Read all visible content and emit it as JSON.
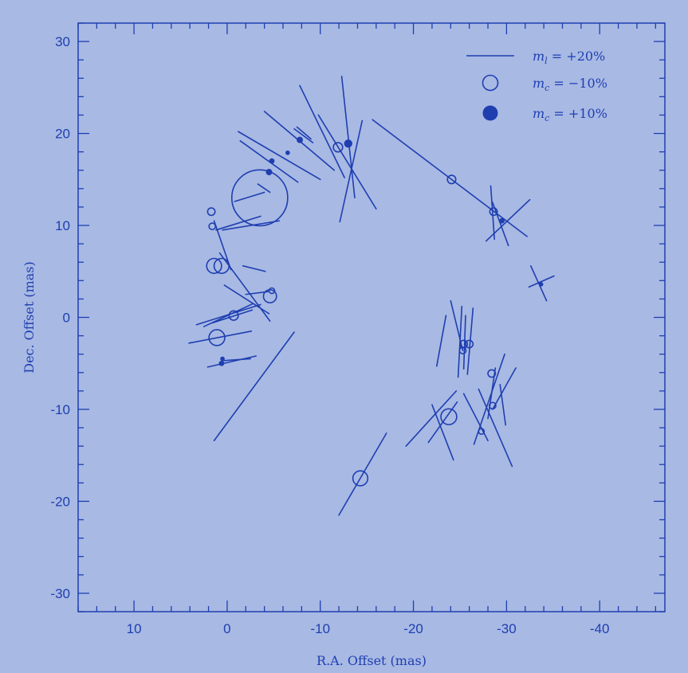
{
  "chart_data": {
    "type": "scatter",
    "title": "",
    "xlabel": "R.A. Offset (mas)",
    "ylabel": "Dec. Offset (mas)",
    "xlim": [
      16,
      -47
    ],
    "ylim": [
      -32,
      32
    ],
    "xticks": [
      10,
      0,
      -10,
      -20,
      -30,
      -40
    ],
    "xtick_labels": [
      "10",
      "0",
      "-10",
      "-20",
      "-30",
      "-40"
    ],
    "yticks": [
      30,
      20,
      10,
      0,
      -10,
      -20,
      -30
    ],
    "ytick_labels": [
      "30",
      "20",
      "10",
      "0",
      "-10",
      "-20",
      "-30"
    ],
    "grid": false,
    "legend_position": "top-right",
    "legend": [
      {
        "symbol": "line",
        "label": "m_l = +20%",
        "display": "m",
        "sub": "l",
        "rest": " = +20%"
      },
      {
        "symbol": "open-circle",
        "label": "m_c = −10%",
        "display": "m",
        "sub": "c",
        "rest": " = −10%"
      },
      {
        "symbol": "filled-circle",
        "label": "m_c = +10%",
        "display": "m",
        "sub": "c",
        "rest": " = +10%"
      }
    ],
    "colors": {
      "background": "#a8b9e4",
      "ink": "#1f3fb0"
    },
    "vectors": [
      {
        "x": 1.0,
        "y": 11.0,
        "line": [
          [
            1.2,
            9.5
          ],
          [
            -3.6,
            11.0
          ]
        ]
      },
      {
        "x": 1.6,
        "y": 10.0,
        "line": [
          [
            0.5,
            9.5
          ],
          [
            -5.6,
            10.5
          ]
        ]
      },
      {
        "x": 1.0,
        "y": 7.5,
        "line": [
          [
            1.4,
            10.5
          ],
          [
            -0.4,
            5.2
          ]
        ]
      },
      {
        "x": 1.0,
        "y": 6.0,
        "line": [
          [
            -2.0,
            2.5
          ],
          [
            -4.4,
            2.8
          ]
        ]
      },
      {
        "x": 0.5,
        "y": 5.0,
        "line": [
          [
            0.3,
            3.5
          ],
          [
            -4.5,
            0.4
          ]
        ]
      },
      {
        "x": 2.0,
        "y": 4.5,
        "line": [
          [
            0.8,
            7.0
          ],
          [
            -4.6,
            -0.4
          ]
        ]
      },
      {
        "x": -3.0,
        "y": 4.5,
        "line": [
          [
            -1.7,
            5.6
          ],
          [
            -4.1,
            5.0
          ]
        ]
      },
      {
        "x": -2.0,
        "y": 13.0,
        "line": [
          [
            -0.8,
            12.6
          ],
          [
            -4.0,
            13.6
          ]
        ]
      },
      {
        "x": -3.5,
        "y": 14.0,
        "line": [
          [
            -3.3,
            14.5
          ],
          [
            -4.6,
            13.6
          ]
        ]
      },
      {
        "x": -4.5,
        "y": 17.0,
        "line": [
          [
            -1.4,
            19.2
          ],
          [
            -7.6,
            14.7
          ]
        ]
      },
      {
        "x": -5.6,
        "y": 17.9,
        "line": [
          [
            -1.2,
            20.2
          ],
          [
            -10.0,
            15.0
          ]
        ]
      },
      {
        "x": -7.8,
        "y": 19.2,
        "line": [
          [
            -4.0,
            22.4
          ],
          [
            -11.5,
            16.0
          ]
        ]
      },
      {
        "x": -8.0,
        "y": 19.8,
        "line": [
          [
            -7.2,
            20.5
          ],
          [
            -9.2,
            19.0
          ]
        ]
      },
      {
        "x": -8.2,
        "y": 20.0,
        "line": [
          [
            -7.5,
            20.7
          ],
          [
            -9.0,
            19.4
          ]
        ]
      },
      {
        "x": -10.0,
        "y": 20.0,
        "line": [
          [
            -7.8,
            25.2
          ],
          [
            -12.6,
            15.2
          ]
        ]
      },
      {
        "x": -12.6,
        "y": 18.0,
        "line": [
          [
            -12.3,
            26.2
          ],
          [
            -13.7,
            13.0
          ]
        ]
      },
      {
        "x": -13.2,
        "y": 16.0,
        "line": [
          [
            -9.8,
            22.0
          ],
          [
            -16.0,
            11.8
          ]
        ]
      },
      {
        "x": -13.3,
        "y": 16.0,
        "line": [
          [
            -14.5,
            21.4
          ],
          [
            -12.1,
            10.4
          ]
        ]
      },
      {
        "x": -23.5,
        "y": 15.0,
        "line": [
          [
            -15.6,
            21.5
          ],
          [
            -32.2,
            8.8
          ]
        ]
      },
      {
        "x": -28.5,
        "y": 11.5,
        "line": [
          [
            -28.3,
            14.3
          ],
          [
            -28.7,
            8.5
          ]
        ]
      },
      {
        "x": -29.0,
        "y": 11.0,
        "line": [
          [
            -27.8,
            8.3
          ],
          [
            -32.5,
            12.8
          ]
        ]
      },
      {
        "x": -29.2,
        "y": 10.0,
        "line": [
          [
            -28.5,
            12.5
          ],
          [
            -30.2,
            7.8
          ]
        ]
      },
      {
        "x": -33.5,
        "y": 3.5,
        "line": [
          [
            -32.6,
            5.6
          ],
          [
            -34.3,
            1.8
          ]
        ]
      },
      {
        "x": -33.8,
        "y": 3.4,
        "line": [
          [
            -32.4,
            3.3
          ],
          [
            -35.1,
            4.5
          ]
        ]
      },
      {
        "x": 0.0,
        "y": 0.0,
        "line": [
          [
            3.3,
            -0.8
          ],
          [
            -3.6,
            1.4
          ]
        ]
      },
      {
        "x": -0.1,
        "y": 0.3,
        "line": [
          [
            2.5,
            -1.0
          ],
          [
            -2.8,
            1.5
          ]
        ]
      },
      {
        "x": -0.5,
        "y": 0.0,
        "line": [
          [
            1.6,
            -0.6
          ],
          [
            -2.7,
            0.8
          ]
        ]
      },
      {
        "x": 0.0,
        "y": -2.0,
        "line": [
          [
            4.1,
            -2.8
          ],
          [
            -2.6,
            -1.5
          ]
        ]
      },
      {
        "x": -0.5,
        "y": -4.5,
        "line": [
          [
            2.1,
            -5.4
          ],
          [
            -3.1,
            -4.2
          ]
        ]
      },
      {
        "x": -1.0,
        "y": -4.8,
        "line": [
          [
            0.4,
            -4.7
          ],
          [
            -2.5,
            -4.5
          ]
        ]
      },
      {
        "x": -5.0,
        "y": -6.0,
        "line": [
          [
            1.4,
            -13.4
          ],
          [
            -7.2,
            -1.6
          ]
        ]
      },
      {
        "x": -24.5,
        "y": -1.0,
        "line": [
          [
            -24.0,
            1.8
          ],
          [
            -25.3,
            -3.6
          ]
        ]
      },
      {
        "x": -24.0,
        "y": -3.0,
        "line": [
          [
            -23.5,
            0.2
          ],
          [
            -22.5,
            -5.3
          ]
        ]
      },
      {
        "x": -25.0,
        "y": -3.0,
        "line": [
          [
            -25.2,
            1.2
          ],
          [
            -24.8,
            -6.5
          ]
        ]
      },
      {
        "x": -25.5,
        "y": -3.5,
        "line": [
          [
            -25.6,
            0.2
          ],
          [
            -25.4,
            -5.6
          ]
        ]
      },
      {
        "x": -26.0,
        "y": -2.5,
        "line": [
          [
            -26.4,
            1.0
          ],
          [
            -25.8,
            -6.2
          ]
        ]
      },
      {
        "x": -24.0,
        "y": -10.0,
        "line": [
          [
            -22.0,
            -9.5
          ],
          [
            -24.3,
            -15.5
          ]
        ]
      },
      {
        "x": -22.0,
        "y": -11.0,
        "line": [
          [
            -19.2,
            -14.0
          ],
          [
            -24.6,
            -8.0
          ]
        ]
      },
      {
        "x": -23.5,
        "y": -11.0,
        "line": [
          [
            -21.6,
            -13.6
          ],
          [
            -24.7,
            -9.2
          ]
        ]
      },
      {
        "x": -26.5,
        "y": -11.0,
        "line": [
          [
            -25.4,
            -8.3
          ],
          [
            -28.0,
            -13.4
          ]
        ]
      },
      {
        "x": -28.5,
        "y": -10.0,
        "line": [
          [
            -27.0,
            -7.8
          ],
          [
            -30.6,
            -16.2
          ]
        ]
      },
      {
        "x": -27.2,
        "y": -12.0,
        "line": [
          [
            -29.8,
            -4.0
          ],
          [
            -26.5,
            -13.8
          ]
        ]
      },
      {
        "x": -28.5,
        "y": -8.0,
        "line": [
          [
            -28.8,
            -5.5
          ],
          [
            -28.0,
            -11.0
          ]
        ]
      },
      {
        "x": -29.0,
        "y": -9.0,
        "line": [
          [
            -28.5,
            -10.0
          ],
          [
            -31.0,
            -5.5
          ]
        ]
      },
      {
        "x": -29.5,
        "y": -10.5,
        "line": [
          [
            -29.3,
            -7.3
          ],
          [
            -29.9,
            -11.7
          ]
        ]
      },
      {
        "x": -14.0,
        "y": -17.6,
        "line": [
          [
            -12.0,
            -21.5
          ],
          [
            -17.1,
            -12.6
          ]
        ]
      }
    ],
    "open_circles": [
      {
        "x": -3.5,
        "y": 13.0,
        "size": 6.0
      },
      {
        "x": 1.7,
        "y": 11.5,
        "size": 0.8
      },
      {
        "x": 1.6,
        "y": 9.9,
        "size": 0.7
      },
      {
        "x": 1.4,
        "y": 5.6,
        "size": 1.6
      },
      {
        "x": 0.6,
        "y": 5.6,
        "size": 1.6
      },
      {
        "x": -4.6,
        "y": 2.3,
        "size": 1.4
      },
      {
        "x": -4.8,
        "y": 2.9,
        "size": 0.6
      },
      {
        "x": -0.7,
        "y": 0.2,
        "size": 1.0
      },
      {
        "x": 1.1,
        "y": -2.2,
        "size": 1.7
      },
      {
        "x": -11.9,
        "y": 18.5,
        "size": 1.0
      },
      {
        "x": -24.1,
        "y": 15.0,
        "size": 0.9
      },
      {
        "x": -28.6,
        "y": 11.5,
        "size": 0.8
      },
      {
        "x": -25.4,
        "y": -2.9,
        "size": 0.8
      },
      {
        "x": -25.3,
        "y": -3.6,
        "size": 0.7
      },
      {
        "x": -26.0,
        "y": -2.9,
        "size": 0.8
      },
      {
        "x": -23.8,
        "y": -10.8,
        "size": 1.7
      },
      {
        "x": -28.4,
        "y": -6.1,
        "size": 0.8
      },
      {
        "x": -28.5,
        "y": -9.6,
        "size": 0.7
      },
      {
        "x": -27.3,
        "y": -12.4,
        "size": 0.6
      },
      {
        "x": -14.3,
        "y": -17.5,
        "size": 1.6
      }
    ],
    "filled_circles": [
      {
        "x": -13.0,
        "y": 18.9,
        "size": 0.8
      },
      {
        "x": -4.5,
        "y": 15.8,
        "size": 0.6
      },
      {
        "x": -4.8,
        "y": 17.0,
        "size": 0.5
      },
      {
        "x": -7.8,
        "y": 19.3,
        "size": 0.6
      },
      {
        "x": -6.5,
        "y": 17.9,
        "size": 0.4
      },
      {
        "x": -29.5,
        "y": 10.5,
        "size": 0.5
      },
      {
        "x": -33.7,
        "y": 3.6,
        "size": 0.4
      },
      {
        "x": 0.5,
        "y": -4.5,
        "size": 0.4
      },
      {
        "x": 0.6,
        "y": -5.0,
        "size": 0.5
      }
    ]
  }
}
